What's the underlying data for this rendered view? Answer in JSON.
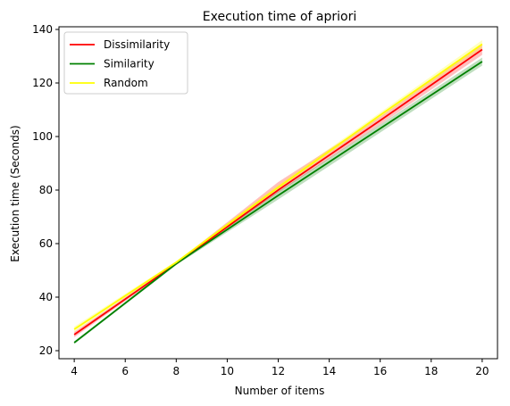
{
  "chart_data": {
    "type": "line",
    "title": "Execution time of apriori",
    "xlabel": "Number of items",
    "ylabel": "Execution time (Seconds)",
    "xlim": [
      3.4,
      20.6
    ],
    "ylim": [
      17,
      141
    ],
    "xticks": [
      4,
      6,
      8,
      10,
      12,
      14,
      16,
      18,
      20
    ],
    "yticks": [
      20,
      40,
      60,
      80,
      100,
      120,
      140
    ],
    "grid": false,
    "legend_position": "top-left",
    "x": [
      4,
      8,
      12,
      16,
      20
    ],
    "series": [
      {
        "name": "Dissimilarity",
        "color": "#ff0000",
        "values": [
          26,
          52.5,
          80,
          106,
          132.5
        ],
        "lower": [
          25,
          52,
          79,
          104.5,
          130.5
        ],
        "upper": [
          27,
          53,
          83,
          107.5,
          134.5
        ]
      },
      {
        "name": "Similarity",
        "color": "#008000",
        "values": [
          23,
          52.5,
          78,
          103,
          128
        ],
        "lower": [
          22.5,
          52,
          76.5,
          101.5,
          126.5
        ],
        "upper": [
          23.5,
          53,
          79.5,
          104.5,
          129.5
        ]
      },
      {
        "name": "Random",
        "color": "#ffff00",
        "values": [
          28,
          53,
          81,
          108,
          134.5
        ],
        "lower": [
          27,
          52.5,
          80,
          107,
          133
        ],
        "upper": [
          29,
          53.5,
          82,
          109,
          136
        ]
      }
    ]
  }
}
